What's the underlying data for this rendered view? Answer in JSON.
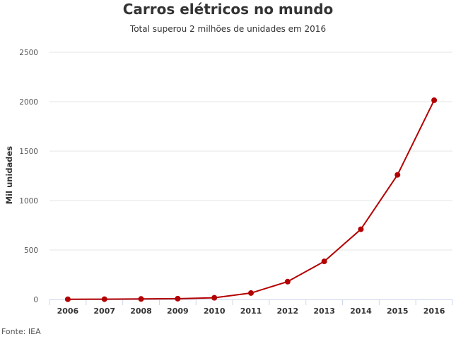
{
  "chart_data": {
    "type": "line",
    "title": "Carros elétricos no mundo",
    "subtitle": "Total superou 2 milhões de unidades em 2016",
    "ylabel": "Mil unidades",
    "xlabel": "",
    "categories": [
      "2006",
      "2007",
      "2008",
      "2009",
      "2010",
      "2011",
      "2012",
      "2013",
      "2014",
      "2015",
      "2016"
    ],
    "y_ticks": [
      "0",
      "500",
      "1000",
      "1500",
      "2000",
      "2500"
    ],
    "ylim": [
      0,
      2500
    ],
    "grid": true,
    "legend": "none",
    "series": [
      {
        "values": [
          2,
          3,
          5,
          8,
          17,
          65,
          180,
          385,
          710,
          1260,
          2015
        ],
        "color": "#b30000"
      }
    ],
    "source": "Fonte: IEA"
  }
}
